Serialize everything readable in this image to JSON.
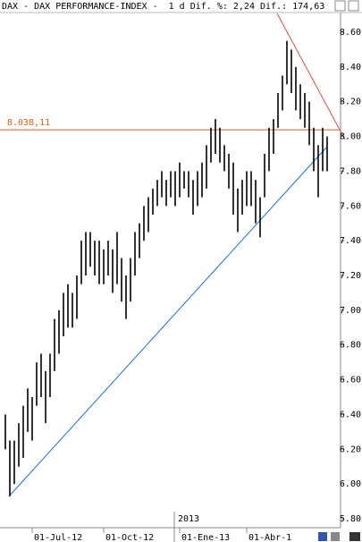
{
  "chart_data": {
    "type": "range_bar",
    "title": "DAX - DAX PERFORMANCE-INDEX -  1 d Dif. %: 2,24 Dif.: 174,63",
    "color": "#000000",
    "categories": [
      null,
      null,
      null,
      null,
      null,
      null,
      "01-Jul-12",
      null,
      null,
      null,
      null,
      null,
      null,
      null,
      null,
      null,
      null,
      null,
      null,
      null,
      null,
      null,
      "01-Oct-12",
      null,
      null,
      null,
      null,
      null,
      null,
      null,
      null,
      null,
      null,
      null,
      null,
      null,
      null,
      null,
      null,
      "01-Ene-13",
      null,
      null,
      null,
      null,
      null,
      null,
      null,
      null,
      null,
      null,
      null,
      null,
      null,
      null,
      "01-Abr-1",
      null,
      null,
      null,
      null,
      null,
      null,
      null,
      null,
      null,
      null,
      null,
      null,
      null,
      null,
      null,
      null,
      null,
      null
    ],
    "lows": [
      6200,
      5930,
      6000,
      6100,
      6150,
      6300,
      6250,
      6450,
      6500,
      6350,
      6500,
      6650,
      6750,
      6850,
      6900,
      6900,
      6950,
      7150,
      7200,
      7250,
      7200,
      7150,
      7150,
      7200,
      7100,
      7150,
      7050,
      6950,
      7050,
      7200,
      7300,
      7400,
      7450,
      7550,
      7600,
      7650,
      7600,
      7650,
      7600,
      7650,
      7700,
      7650,
      7550,
      7600,
      7650,
      7700,
      7850,
      7900,
      7850,
      7800,
      7700,
      7550,
      7450,
      7550,
      7600,
      7600,
      7500,
      7420,
      7650,
      7800,
      7900,
      8050,
      8150,
      8300,
      8250,
      8150,
      8100,
      8050,
      7950,
      7800,
      7650,
      7800,
      7800
    ],
    "highs": [
      6400,
      6250,
      6250,
      6350,
      6450,
      6550,
      6500,
      6700,
      6750,
      6650,
      6750,
      6950,
      7000,
      7100,
      7150,
      7100,
      7200,
      7400,
      7450,
      7450,
      7400,
      7400,
      7350,
      7400,
      7350,
      7450,
      7300,
      7200,
      7300,
      7450,
      7500,
      7600,
      7650,
      7700,
      7750,
      7800,
      7750,
      7800,
      7800,
      7850,
      7800,
      7800,
      7750,
      7800,
      7850,
      7950,
      8050,
      8100,
      8050,
      7950,
      7900,
      7850,
      7700,
      7750,
      7800,
      7800,
      7750,
      7650,
      7900,
      8050,
      8100,
      8250,
      8350,
      8550,
      8500,
      8400,
      8300,
      8250,
      8200,
      8050,
      7950,
      8050,
      8000
    ],
    "ylim": [
      5800,
      8600
    ],
    "yticks": [
      {
        "value": 5800,
        "label": "5.80"
      },
      {
        "value": 6000,
        "label": "6.00"
      },
      {
        "value": 6200,
        "label": "6.20"
      },
      {
        "value": 6400,
        "label": "6.40"
      },
      {
        "value": 6600,
        "label": "6.60"
      },
      {
        "value": 6800,
        "label": "6.80"
      },
      {
        "value": 7000,
        "label": "7.00"
      },
      {
        "value": 7200,
        "label": "7.20"
      },
      {
        "value": 7400,
        "label": "7.40"
      },
      {
        "value": 7600,
        "label": "7.60"
      },
      {
        "value": 7800,
        "label": "7.80"
      },
      {
        "value": 8000,
        "label": "8.00"
      },
      {
        "value": 8200,
        "label": "8.20"
      },
      {
        "value": 8400,
        "label": "8.40"
      },
      {
        "value": 8600,
        "label": "8.60"
      }
    ],
    "reference_line": {
      "value": 8038.11,
      "label": "8.038,11",
      "color": "#e0601a"
    },
    "year_label": "2013"
  }
}
